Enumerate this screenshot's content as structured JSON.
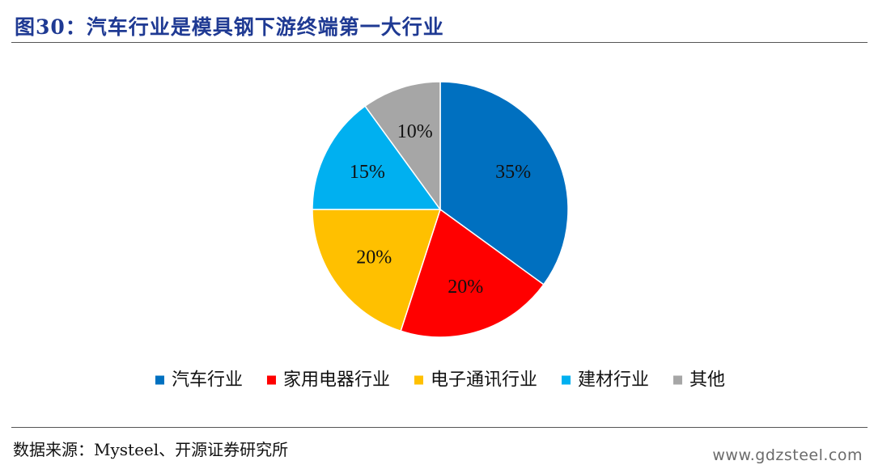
{
  "header": {
    "title": "图30：汽车行业是模具钢下游终端第一大行业"
  },
  "chart_data": {
    "type": "pie",
    "categories": [
      "汽车行业",
      "家用电器行业",
      "电子通讯行业",
      "建材行业",
      "其他"
    ],
    "values": [
      35,
      20,
      20,
      15,
      10
    ],
    "data_labels": [
      "35%",
      "20%",
      "20%",
      "15%",
      "10%"
    ],
    "colors": [
      "#0070C0",
      "#FF0000",
      "#FFC000",
      "#00B0F0",
      "#A6A6A6"
    ],
    "legend_position": "bottom",
    "start_angle": "12 o'clock",
    "direction": "clockwise"
  },
  "footer": {
    "source": "数据来源：Mysteel、开源证券研究所",
    "watermark": "www.gdzsteel.com"
  }
}
